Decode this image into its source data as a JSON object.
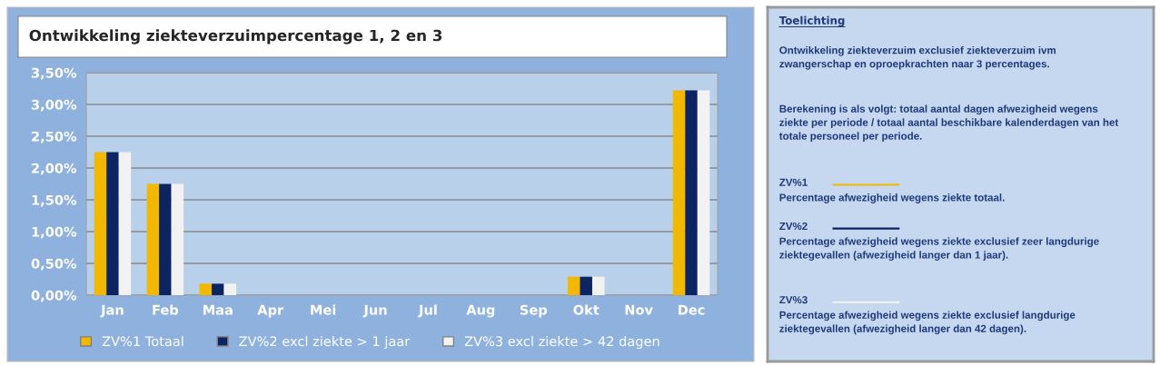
{
  "chart_data": [
    {
      "type": "bar",
      "title": "Ontwikkeling ziekteverzuimpercentage 1, 2 en 3",
      "categories": [
        "Jan",
        "Feb",
        "Maa",
        "Apr",
        "Mei",
        "Jun",
        "Jul",
        "Aug",
        "Sep",
        "Okt",
        "Nov",
        "Dec"
      ],
      "series": [
        {
          "name": "ZV%1 Totaal",
          "color": "#f2b800",
          "values": [
            2.25,
            1.75,
            0.18,
            0,
            0,
            0,
            0,
            0,
            0,
            0.29,
            0,
            3.22
          ]
        },
        {
          "name": "ZV%2 excl ziekte > 1 jaar",
          "color": "#0c2462",
          "values": [
            2.25,
            1.75,
            0.18,
            0,
            0,
            0,
            0,
            0,
            0,
            0.29,
            0,
            3.22
          ]
        },
        {
          "name": "ZV%3 excl ziekte > 42 dagen",
          "color": "#f2f2f2",
          "values": [
            2.25,
            1.75,
            0.18,
            0,
            0,
            0,
            0,
            0,
            0,
            0.29,
            0,
            3.22
          ]
        }
      ],
      "ylim": [
        0,
        3.5
      ],
      "yticks": [
        {
          "value": 0,
          "label": "0,00%"
        },
        {
          "value": 0.5,
          "label": "0,50%"
        },
        {
          "value": 1,
          "label": "1,00%"
        },
        {
          "value": 1.5,
          "label": "1,50%"
        },
        {
          "value": 2,
          "label": "2,00%"
        },
        {
          "value": 2.5,
          "label": "2,50%"
        },
        {
          "value": 3,
          "label": "3,00%"
        },
        {
          "value": 3.5,
          "label": "3,50%"
        }
      ],
      "grid": "y",
      "legend": "bottom"
    },
    {
      "type": "other",
      "title": "Toelichting",
      "annotations": [
        "Ontwikkeling ziekteverzuim exclusief ziekteverzuim ivm zwangerschap en oproepkrachten naar 3 percentages.",
        "Berekening is als volgt: totaal aantal dagen afwezigheid wegens ziekte per periode / totaal aantal beschikbare kalenderdagen van het totale personeel per periode.",
        "ZV%1",
        "Percentage afwezigheid wegens ziekte totaal.",
        "ZV%2",
        "Percentage afwezigheid wegens ziekte exclusief zeer langdurige ziektegevallen (afwezigheid langer dan 1 jaar).",
        "ZV%3",
        "Percentage afwezigheid wegens ziekte exclusief langdurige ziektegevallen (afwezigheid langer dan 42 dagen)."
      ]
    }
  ]
}
